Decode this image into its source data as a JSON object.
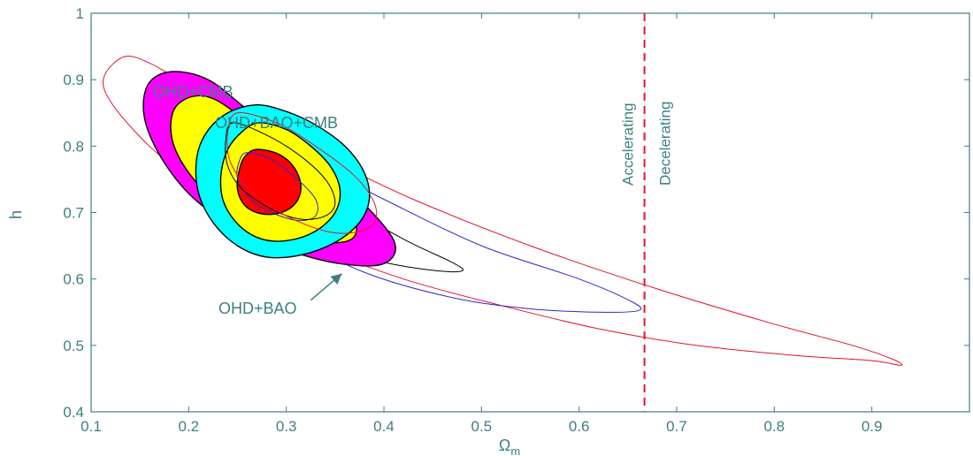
{
  "chart_data": {
    "type": "contour",
    "xlabel": "Ω_m",
    "xlabel_main": "Ω",
    "xlabel_sub": "m",
    "ylabel": "h",
    "xlim": [
      0.1,
      1.0
    ],
    "ylim": [
      0.4,
      1.0
    ],
    "x_ticks": [
      0.1,
      0.2,
      0.3,
      0.4,
      0.5,
      0.6,
      0.7,
      0.8,
      0.9
    ],
    "x_tick_labels": [
      "0.1",
      "0.2",
      "0.3",
      "0.4",
      "0.5",
      "0.6",
      "0.7",
      "0.8",
      "0.9"
    ],
    "y_ticks": [
      0.4,
      0.5,
      0.6,
      0.7,
      0.8,
      0.9,
      1.0
    ],
    "y_tick_labels": [
      "0.4",
      "0.5",
      "0.6",
      "0.7",
      "0.8",
      "0.9",
      "1"
    ],
    "grid": false,
    "divider": {
      "x": 0.667,
      "color": "#e8112d",
      "style": "dashed",
      "left_label": "Accelerating",
      "right_label": "Decelerating"
    },
    "annotations": {
      "ohd_cmb": "OHD+CMB",
      "ohd_bao_cmb": "OHD+BAO+CMB",
      "ohd_bao": "OHD+BAO"
    },
    "arrow": {
      "from": [
        0.325,
        0.568
      ],
      "to": [
        0.357,
        0.608
      ],
      "color": "#3e7f84"
    },
    "contours": [
      {
        "name": "OHD",
        "level": "outer",
        "fill": "none",
        "stroke": "#e8112d",
        "points": [
          [
            0.135,
            0.935
          ],
          [
            0.115,
            0.91
          ],
          [
            0.115,
            0.88
          ],
          [
            0.14,
            0.83
          ],
          [
            0.18,
            0.775
          ],
          [
            0.25,
            0.71
          ],
          [
            0.33,
            0.65
          ],
          [
            0.42,
            0.6
          ],
          [
            0.52,
            0.56
          ],
          [
            0.62,
            0.525
          ],
          [
            0.72,
            0.5
          ],
          [
            0.82,
            0.485
          ],
          [
            0.9,
            0.477
          ],
          [
            0.93,
            0.47
          ],
          [
            0.92,
            0.48
          ],
          [
            0.88,
            0.5
          ],
          [
            0.8,
            0.532
          ],
          [
            0.68,
            0.585
          ],
          [
            0.55,
            0.65
          ],
          [
            0.43,
            0.72
          ],
          [
            0.33,
            0.79
          ],
          [
            0.25,
            0.85
          ],
          [
            0.19,
            0.9
          ],
          [
            0.16,
            0.925
          ]
        ]
      },
      {
        "name": "OHD+BAO",
        "level": "outer",
        "fill": "none",
        "stroke": "#2a2ad0",
        "points": [
          [
            0.22,
            0.82
          ],
          [
            0.24,
            0.73
          ],
          [
            0.3,
            0.67
          ],
          [
            0.38,
            0.61
          ],
          [
            0.47,
            0.572
          ],
          [
            0.55,
            0.555
          ],
          [
            0.62,
            0.55
          ],
          [
            0.66,
            0.552
          ],
          [
            0.655,
            0.565
          ],
          [
            0.6,
            0.6
          ],
          [
            0.5,
            0.65
          ],
          [
            0.4,
            0.72
          ],
          [
            0.32,
            0.78
          ],
          [
            0.26,
            0.83
          ],
          [
            0.23,
            0.84
          ]
        ]
      },
      {
        "name": "OHD+CMB",
        "level": "outer",
        "fill": "none",
        "stroke": "#000000",
        "points": [
          [
            0.17,
            0.86
          ],
          [
            0.2,
            0.79
          ],
          [
            0.27,
            0.7
          ],
          [
            0.34,
            0.648
          ],
          [
            0.4,
            0.625
          ],
          [
            0.45,
            0.613
          ],
          [
            0.48,
            0.612
          ],
          [
            0.47,
            0.625
          ],
          [
            0.42,
            0.66
          ],
          [
            0.35,
            0.72
          ],
          [
            0.29,
            0.78
          ],
          [
            0.24,
            0.83
          ],
          [
            0.2,
            0.865
          ]
        ]
      },
      {
        "name": "OHD+CMB",
        "level": "2sigma",
        "fill": "#ff00ff",
        "stroke": "#000000",
        "points": [
          [
            0.182,
            0.912
          ],
          [
            0.158,
            0.892
          ],
          [
            0.155,
            0.84
          ],
          [
            0.175,
            0.775
          ],
          [
            0.21,
            0.715
          ],
          [
            0.26,
            0.668
          ],
          [
            0.315,
            0.637
          ],
          [
            0.36,
            0.622
          ],
          [
            0.398,
            0.622
          ],
          [
            0.412,
            0.645
          ],
          [
            0.4,
            0.68
          ],
          [
            0.36,
            0.74
          ],
          [
            0.31,
            0.8
          ],
          [
            0.26,
            0.855
          ],
          [
            0.22,
            0.9
          ]
        ]
      },
      {
        "name": "OHD+CMB",
        "level": "1sigma",
        "fill": "#ffff00",
        "stroke": "#000000",
        "points": [
          [
            0.205,
            0.875
          ],
          [
            0.185,
            0.855
          ],
          [
            0.183,
            0.81
          ],
          [
            0.2,
            0.76
          ],
          [
            0.23,
            0.715
          ],
          [
            0.275,
            0.678
          ],
          [
            0.32,
            0.658
          ],
          [
            0.36,
            0.656
          ],
          [
            0.372,
            0.675
          ],
          [
            0.36,
            0.715
          ],
          [
            0.32,
            0.77
          ],
          [
            0.27,
            0.825
          ],
          [
            0.23,
            0.868
          ]
        ]
      },
      {
        "name": "OHD+CMB",
        "level": "best",
        "fill": "#ff0000",
        "stroke": "#000000",
        "points": [
          [
            0.22,
            0.8
          ],
          [
            0.215,
            0.788
          ],
          [
            0.222,
            0.776
          ],
          [
            0.233,
            0.772
          ],
          [
            0.238,
            0.785
          ],
          [
            0.232,
            0.798
          ]
        ]
      },
      {
        "name": "OHD+BAO+CMB",
        "level": "2sigma",
        "fill": "#00ffff",
        "stroke": "#000000",
        "points": [
          [
            0.27,
            0.862
          ],
          [
            0.3,
            0.852
          ],
          [
            0.33,
            0.832
          ],
          [
            0.36,
            0.8
          ],
          [
            0.38,
            0.76
          ],
          [
            0.385,
            0.72
          ],
          [
            0.375,
            0.685
          ],
          [
            0.35,
            0.655
          ],
          [
            0.315,
            0.636
          ],
          [
            0.28,
            0.633
          ],
          [
            0.25,
            0.65
          ],
          [
            0.225,
            0.685
          ],
          [
            0.21,
            0.73
          ],
          [
            0.208,
            0.78
          ],
          [
            0.218,
            0.82
          ],
          [
            0.24,
            0.85
          ]
        ]
      },
      {
        "name": "OHD+BAO+CMB",
        "level": "1sigma",
        "fill": "#ffff00",
        "stroke": "#000000",
        "points": [
          [
            0.272,
            0.835
          ],
          [
            0.3,
            0.825
          ],
          [
            0.325,
            0.8
          ],
          [
            0.345,
            0.77
          ],
          [
            0.355,
            0.735
          ],
          [
            0.35,
            0.7
          ],
          [
            0.33,
            0.672
          ],
          [
            0.302,
            0.658
          ],
          [
            0.275,
            0.66
          ],
          [
            0.252,
            0.68
          ],
          [
            0.236,
            0.715
          ],
          [
            0.233,
            0.755
          ],
          [
            0.24,
            0.795
          ],
          [
            0.255,
            0.822
          ]
        ]
      },
      {
        "name": "OHD+BAO+CMB",
        "level": "best",
        "fill": "#ff0000",
        "stroke": "#000000",
        "points": [
          [
            0.27,
            0.795
          ],
          [
            0.292,
            0.788
          ],
          [
            0.308,
            0.768
          ],
          [
            0.315,
            0.74
          ],
          [
            0.31,
            0.715
          ],
          [
            0.295,
            0.7
          ],
          [
            0.275,
            0.698
          ],
          [
            0.258,
            0.71
          ],
          [
            0.25,
            0.735
          ],
          [
            0.252,
            0.765
          ],
          [
            0.258,
            0.785
          ]
        ]
      },
      {
        "name": "OHD+BAO",
        "level": "inner",
        "fill": "none",
        "stroke": "#2a2ad0",
        "points": [
          [
            0.26,
            0.79
          ],
          [
            0.285,
            0.78
          ],
          [
            0.31,
            0.752
          ],
          [
            0.33,
            0.72
          ],
          [
            0.33,
            0.695
          ],
          [
            0.312,
            0.688
          ],
          [
            0.285,
            0.7
          ],
          [
            0.262,
            0.722
          ],
          [
            0.25,
            0.752
          ],
          [
            0.252,
            0.778
          ]
        ]
      },
      {
        "name": "OHD",
        "level": "inner",
        "fill": "none",
        "stroke": "#000000",
        "points": [
          [
            0.245,
            0.835
          ],
          [
            0.275,
            0.82
          ],
          [
            0.31,
            0.79
          ],
          [
            0.34,
            0.75
          ],
          [
            0.35,
            0.715
          ],
          [
            0.34,
            0.695
          ],
          [
            0.315,
            0.69
          ],
          [
            0.285,
            0.705
          ],
          [
            0.255,
            0.735
          ],
          [
            0.24,
            0.77
          ],
          [
            0.238,
            0.81
          ]
        ]
      },
      {
        "name": "OHD+BAO",
        "level": "mid",
        "fill": "none",
        "stroke": "#e8112d",
        "points": [
          [
            0.25,
            0.85
          ],
          [
            0.29,
            0.835
          ],
          [
            0.33,
            0.8
          ],
          [
            0.37,
            0.755
          ],
          [
            0.39,
            0.715
          ],
          [
            0.39,
            0.685
          ],
          [
            0.37,
            0.67
          ],
          [
            0.34,
            0.672
          ],
          [
            0.3,
            0.695
          ],
          [
            0.265,
            0.73
          ],
          [
            0.243,
            0.775
          ],
          [
            0.24,
            0.82
          ]
        ]
      }
    ]
  }
}
